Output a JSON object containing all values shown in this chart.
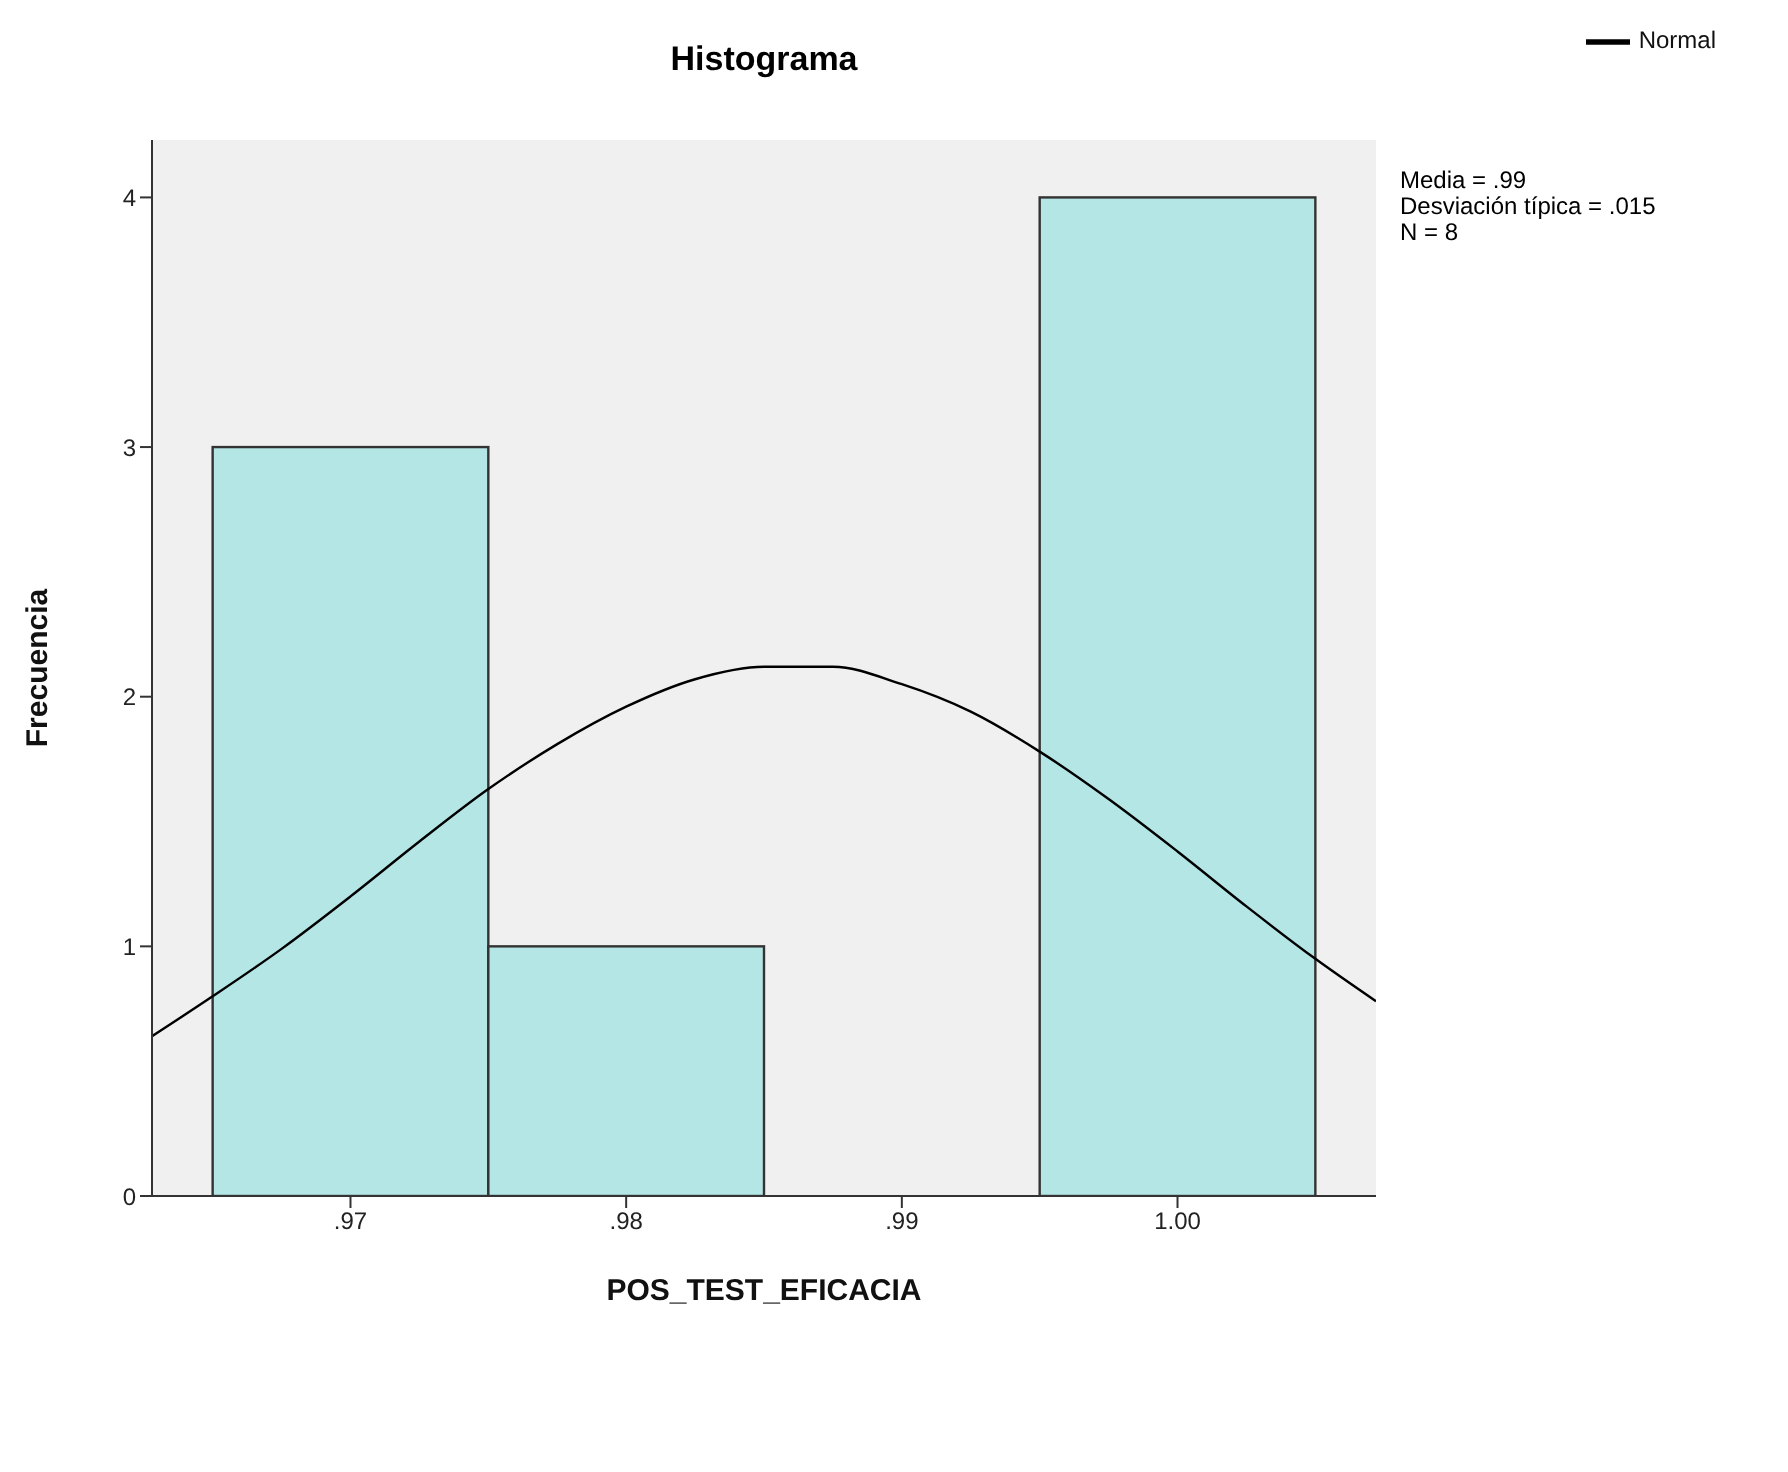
{
  "chart_data": {
    "type": "histogram",
    "title": "Histograma",
    "xlabel": "POS_TEST_EFICACIA",
    "ylabel": "Frecuencia",
    "bins": [
      0.965,
      0.975,
      0.985,
      0.995,
      1.005
    ],
    "values": [
      3,
      1,
      0,
      4
    ],
    "color": "#b4e6e6",
    "series": [
      {
        "name": "Normal",
        "type": "line",
        "color": "#000000",
        "x": [
          0.9628,
          0.965,
          0.9675,
          0.97,
          0.9725,
          0.975,
          0.9775,
          0.98,
          0.9825,
          0.985,
          0.9875,
          0.99,
          0.9925,
          0.995,
          0.9975,
          1.0,
          1.0025,
          1.005,
          1.0072
        ],
        "values": [
          0.64,
          0.8,
          0.99,
          1.2,
          1.42,
          1.63,
          1.81,
          1.96,
          2.07,
          2.12,
          2.12,
          2.05,
          1.94,
          1.78,
          1.59,
          1.38,
          1.16,
          0.95,
          0.78
        ]
      }
    ],
    "xlim": [
      0.9628,
      1.0072
    ],
    "xticks": [
      {
        "value": 0.97,
        "label": ".97"
      },
      {
        "value": 0.98,
        "label": ".98"
      },
      {
        "value": 0.99,
        "label": ".99"
      },
      {
        "value": 1.0,
        "label": "1.00"
      }
    ],
    "ylim": [
      0,
      4.23
    ],
    "yticks": [
      0,
      1,
      2,
      3,
      4
    ],
    "grid": false,
    "legend": "top right",
    "marker": "none",
    "line_style": "solid",
    "annotations": [
      "Media = .99",
      "Desviación típica = .015",
      "N = 8"
    ]
  }
}
